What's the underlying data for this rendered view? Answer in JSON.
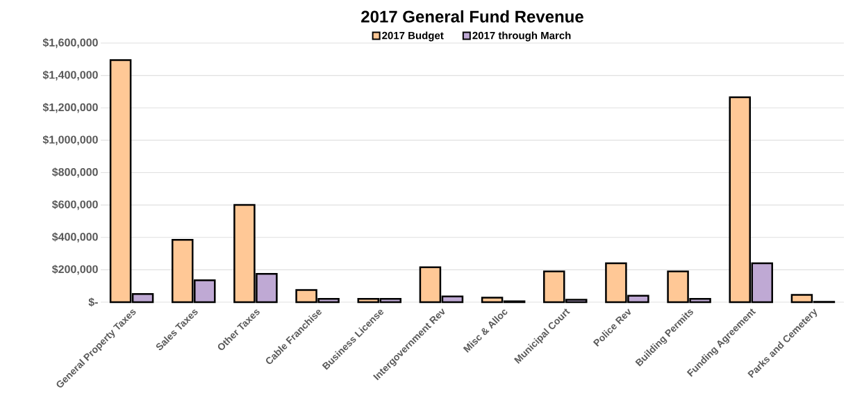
{
  "chart_data": {
    "type": "bar",
    "title": "2017 General Fund Revenue",
    "categories": [
      "General Property Taxes",
      "Sales Taxes",
      "Other Taxes",
      "Cable Franchise",
      "Business License",
      "Intergovernment Rev",
      "Misc & Alloc",
      "Municipal Court",
      "Police Rev",
      "Building Permits",
      "Funding Agreement",
      "Parks and Cemetery"
    ],
    "series": [
      {
        "name": "2017 Budget",
        "color": "#ffc896",
        "values": [
          1495000,
          385000,
          600000,
          75000,
          20000,
          215000,
          28000,
          190000,
          240000,
          190000,
          1265000,
          45000
        ]
      },
      {
        "name": "2017 through March",
        "color": "#bfa9d4",
        "values": [
          50000,
          135000,
          175000,
          20000,
          20000,
          35000,
          5000,
          15000,
          40000,
          20000,
          240000,
          2000
        ]
      }
    ],
    "ylim": [
      0,
      1600000
    ],
    "yticks": [
      {
        "value": 0,
        "label": "$-"
      },
      {
        "value": 200000,
        "label": "$200,000"
      },
      {
        "value": 400000,
        "label": "$400,000"
      },
      {
        "value": 600000,
        "label": "$600,000"
      },
      {
        "value": 800000,
        "label": "$800,000"
      },
      {
        "value": 1000000,
        "label": "$1,000,000"
      },
      {
        "value": 1200000,
        "label": "$1,200,000"
      },
      {
        "value": 1400000,
        "label": "$1,400,000"
      },
      {
        "value": 1600000,
        "label": "$1,600,000"
      }
    ],
    "grid": "y",
    "legend": "top"
  }
}
